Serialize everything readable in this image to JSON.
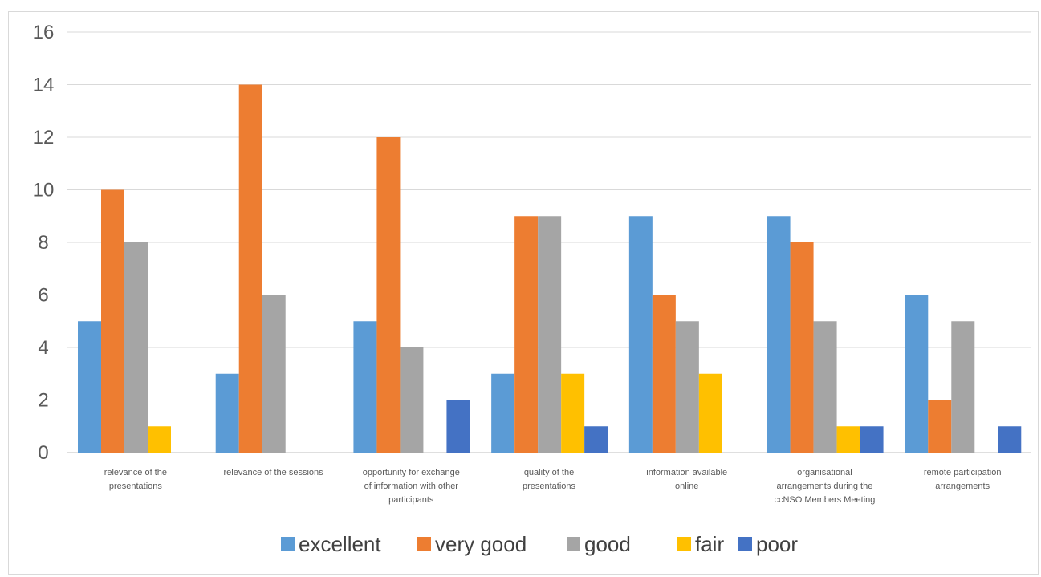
{
  "chart_data": {
    "type": "bar",
    "title": "",
    "xlabel": "",
    "ylabel": "",
    "ylim": [
      0,
      16
    ],
    "yticks": [
      0,
      2,
      4,
      6,
      8,
      10,
      12,
      14,
      16
    ],
    "grid": true,
    "legend_position": "bottom",
    "categories": [
      [
        "relevance of the",
        "presentations"
      ],
      [
        "relevance of the sessions"
      ],
      [
        "opportunity for exchange",
        "of information with other",
        "participants"
      ],
      [
        "quality of the",
        "presentations"
      ],
      [
        "information available",
        "online"
      ],
      [
        "organisational",
        "arrangements during the",
        "ccNSO Members Meeting"
      ],
      [
        "remote participation",
        "arrangements"
      ]
    ],
    "series": [
      {
        "name": "excellent",
        "color": "#5b9bd5",
        "values": [
          5,
          3,
          5,
          3,
          9,
          9,
          6
        ]
      },
      {
        "name": "very good",
        "color": "#ed7d31",
        "values": [
          10,
          14,
          12,
          9,
          6,
          8,
          2
        ]
      },
      {
        "name": "good",
        "color": "#a5a5a5",
        "values": [
          8,
          6,
          4,
          9,
          5,
          5,
          5
        ]
      },
      {
        "name": "fair",
        "color": "#ffc000",
        "values": [
          1,
          0,
          0,
          3,
          3,
          1,
          0
        ]
      },
      {
        "name": "poor",
        "color": "#4472c4",
        "values": [
          0,
          0,
          2,
          1,
          0,
          1,
          1
        ]
      }
    ]
  }
}
